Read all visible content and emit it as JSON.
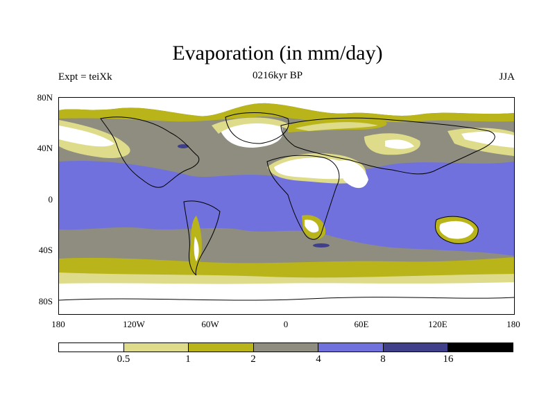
{
  "title": "Evaporation (in mm/day)",
  "left_label": "Expt = teiXk",
  "center_label": "0216kyr BP",
  "right_label": "JJA",
  "lat_ticks": [
    "80N",
    "40N",
    "0",
    "40S",
    "80S"
  ],
  "lon_ticks": [
    "180",
    "120W",
    "60W",
    "0",
    "60E",
    "120E",
    "180"
  ],
  "colorbar": {
    "labels": [
      "0.5",
      "1",
      "2",
      "4",
      "8",
      "16"
    ],
    "colors": [
      "#ffffff",
      "#dedc8a",
      "#b8b41a",
      "#8e8d80",
      "#7171dd",
      "#3f3f8a",
      "#000000"
    ]
  },
  "chart_data": {
    "type": "heatmap",
    "variable": "Evaporation",
    "units": "mm/day",
    "xlim": [
      -180,
      180
    ],
    "ylim": [
      -90,
      90
    ],
    "levels": [
      0.5,
      1,
      2,
      4,
      8,
      16
    ]
  }
}
